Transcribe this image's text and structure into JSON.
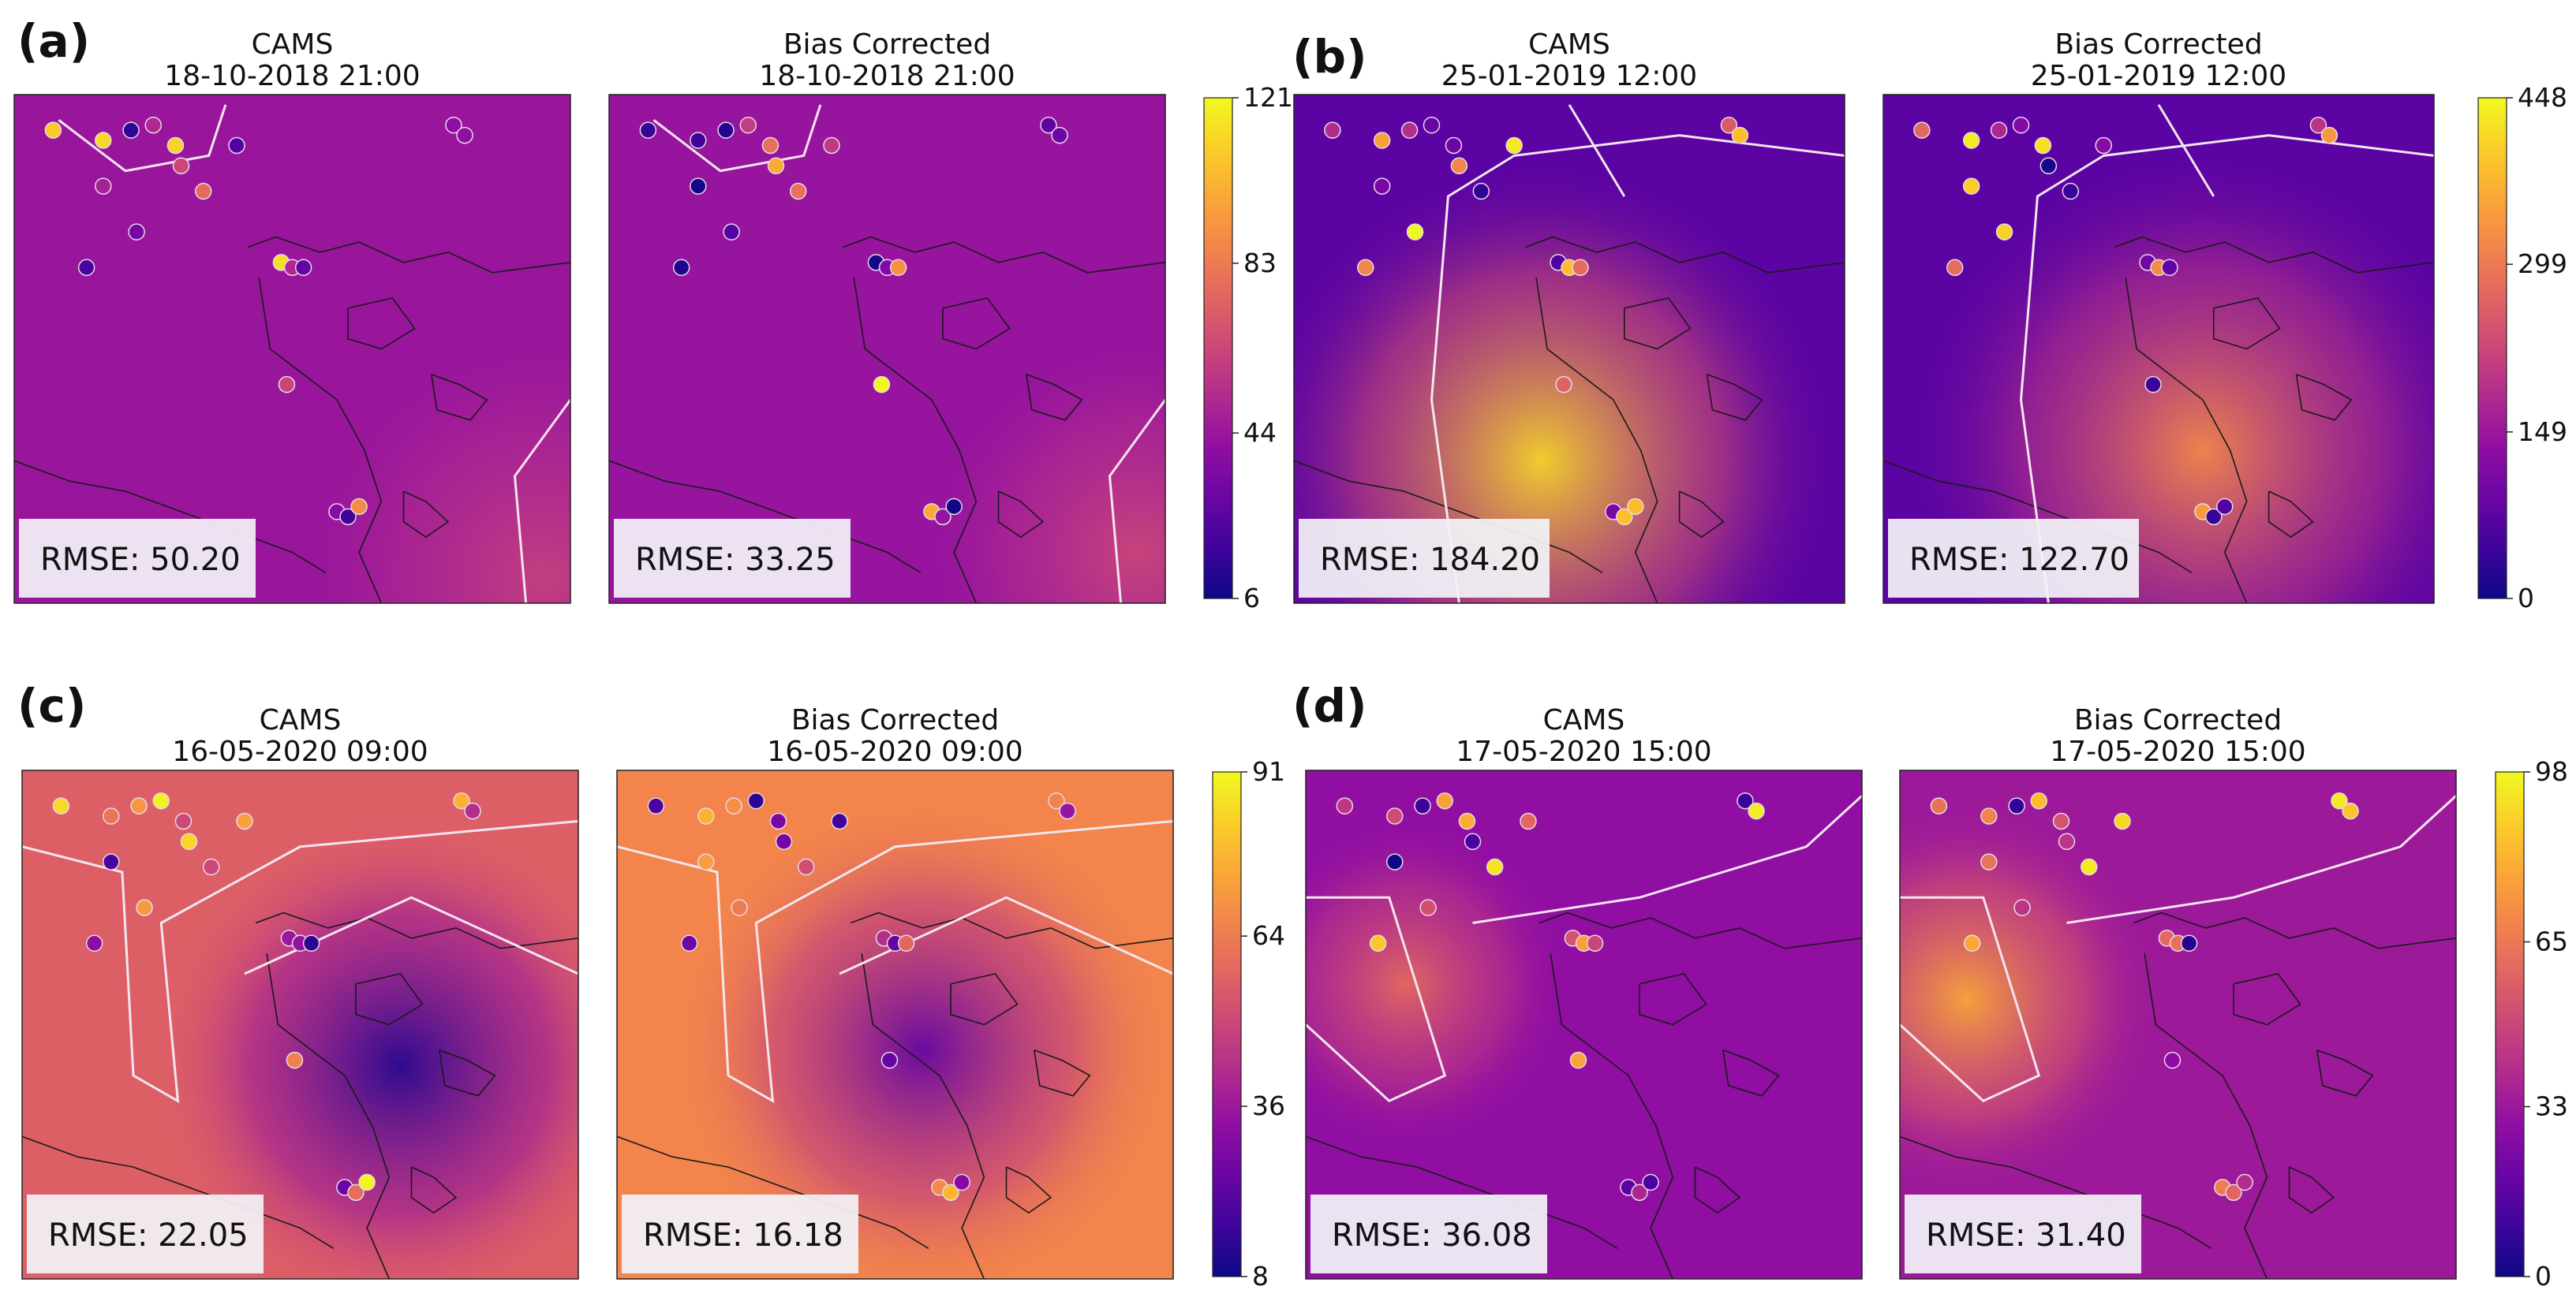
{
  "colors": {
    "colormap": "plasma",
    "contour_line": "#f3e6ee",
    "coastline": "#1a1a1a",
    "rmse_box_bg": "#f2f2f8"
  },
  "chart_data": [
    {
      "type": "heatmap",
      "panel_label": "(a)",
      "colorbar": {
        "min": 6,
        "max": 121,
        "ticks": [
          6,
          44,
          83,
          121
        ]
      },
      "maps": [
        {
          "method": "CAMS",
          "datetime": "18-10-2018 21:00",
          "rmse_label": "RMSE: 50.20"
        },
        {
          "method": "Bias Corrected",
          "datetime": "18-10-2018 21:00",
          "rmse_label": "RMSE: 33.25"
        }
      ]
    },
    {
      "type": "heatmap",
      "panel_label": "(b)",
      "colorbar": {
        "min": 0,
        "max": 448,
        "ticks": [
          0,
          149,
          299,
          448
        ]
      },
      "maps": [
        {
          "method": "CAMS",
          "datetime": "25-01-2019 12:00",
          "rmse_label": "RMSE: 184.20"
        },
        {
          "method": "Bias Corrected",
          "datetime": "25-01-2019 12:00",
          "rmse_label": "RMSE: 122.70"
        }
      ]
    },
    {
      "type": "heatmap",
      "panel_label": "(c)",
      "colorbar": {
        "min": 8,
        "max": 91,
        "ticks": [
          8,
          36,
          64,
          91
        ]
      },
      "maps": [
        {
          "method": "CAMS",
          "datetime": "16-05-2020 09:00",
          "rmse_label": "RMSE: 22.05"
        },
        {
          "method": "Bias Corrected",
          "datetime": "16-05-2020 09:00",
          "rmse_label": "RMSE: 16.18"
        }
      ]
    },
    {
      "type": "heatmap",
      "panel_label": "(d)",
      "colorbar": {
        "min": 0,
        "max": 98,
        "ticks": [
          0,
          33,
          65,
          98
        ]
      },
      "maps": [
        {
          "method": "CAMS",
          "datetime": "17-05-2020 15:00",
          "rmse_label": "RMSE: 36.08"
        },
        {
          "method": "Bias Corrected",
          "datetime": "17-05-2020 15:00",
          "rmse_label": "RMSE: 31.40"
        }
      ]
    }
  ]
}
